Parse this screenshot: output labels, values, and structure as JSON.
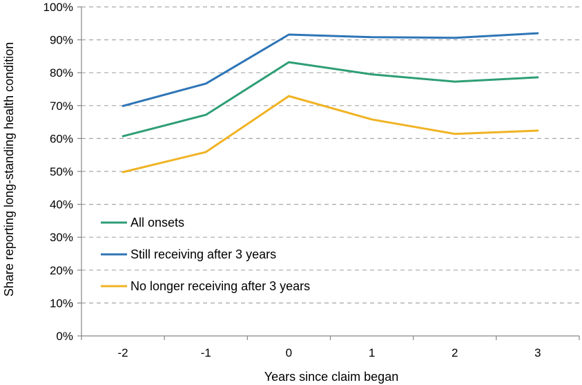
{
  "chart_data": {
    "type": "line",
    "title": "",
    "xlabel": "Years since claim began",
    "ylabel": "Share reporting long-standing health condition",
    "categories": [
      "-2",
      "-1",
      "0",
      "1",
      "2",
      "3"
    ],
    "y_ticks": [
      "0%",
      "10%",
      "20%",
      "30%",
      "40%",
      "50%",
      "60%",
      "70%",
      "80%",
      "90%",
      "100%"
    ],
    "ylim": [
      0,
      100
    ],
    "grid": true,
    "legend_position": "bottom-left",
    "series": [
      {
        "name": "All onsets",
        "color": "#2e9e75",
        "values": [
          60.7,
          67.2,
          83.2,
          79.5,
          77.3,
          78.6
        ]
      },
      {
        "name": "Still receiving after 3 years",
        "color": "#2e75b6",
        "values": [
          69.9,
          76.7,
          91.6,
          90.8,
          90.6,
          92.0
        ]
      },
      {
        "name": "No longer receiving after 3 years",
        "color": "#f0b323",
        "values": [
          49.8,
          55.9,
          72.9,
          65.8,
          61.4,
          62.4
        ]
      }
    ]
  }
}
